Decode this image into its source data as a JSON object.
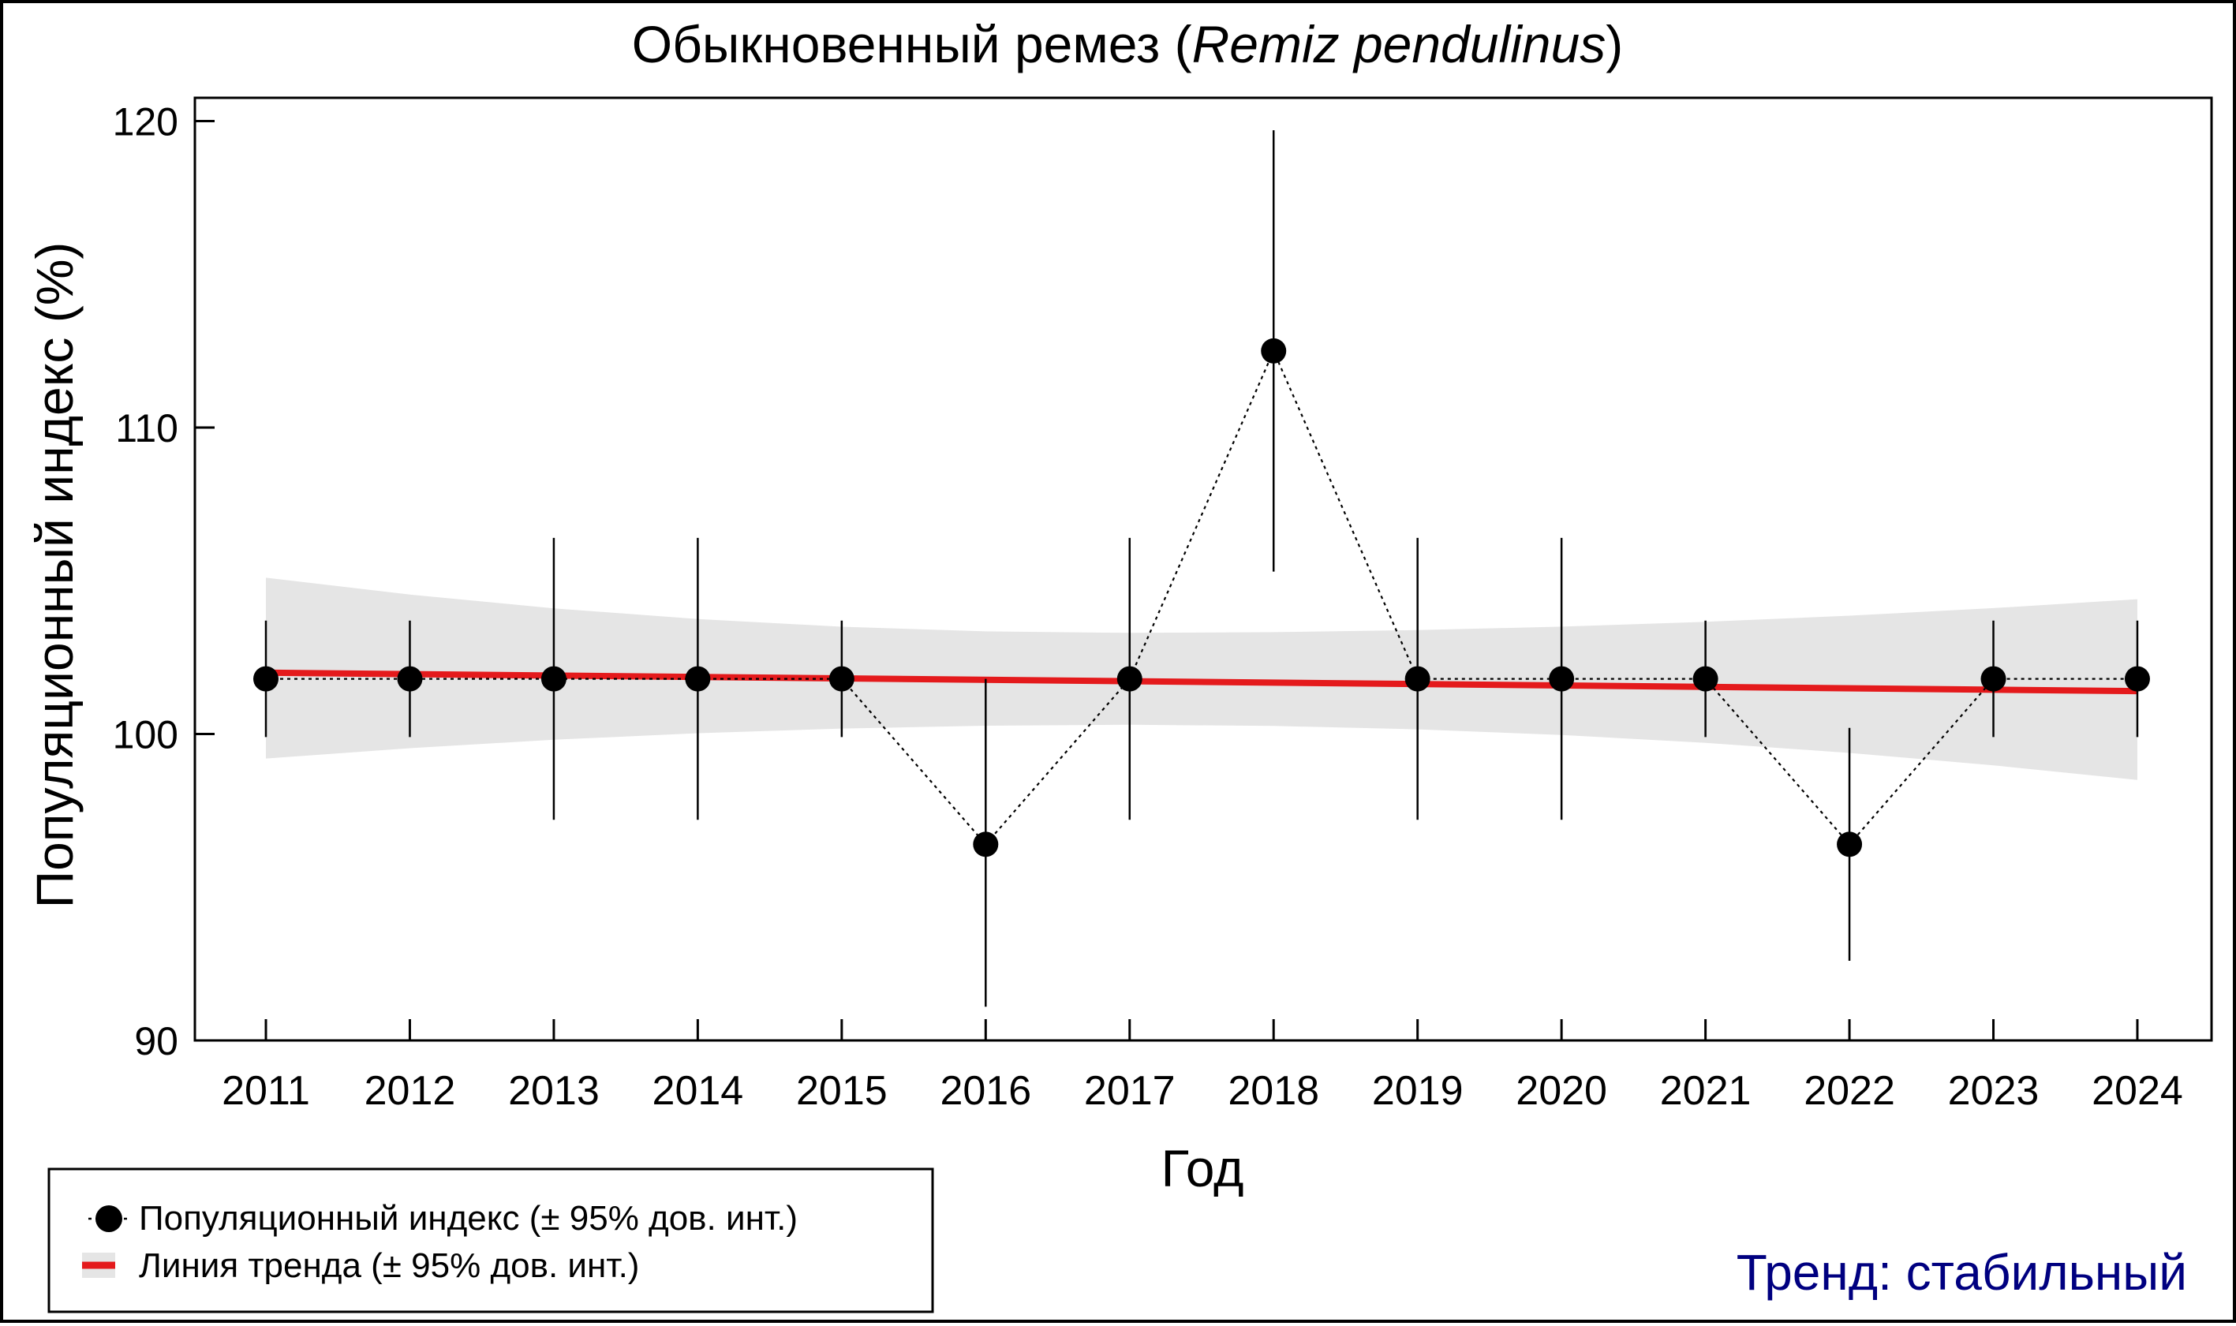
{
  "chart_data": {
    "type": "line",
    "title": {
      "prefix": "Обыкновенный ремез (",
      "italic": "Remiz pendulinus",
      "suffix": ")"
    },
    "xlabel": "Год",
    "ylabel": "Популяционный индекс (%)",
    "ylim": [
      90,
      121
    ],
    "yticks": [
      90,
      100,
      110,
      120
    ],
    "x": [
      2011,
      2012,
      2013,
      2014,
      2015,
      2016,
      2017,
      2018,
      2019,
      2020,
      2021,
      2022,
      2023,
      2024
    ],
    "series": [
      {
        "name": "Популяционный индекс (± 95% дов. инт.)",
        "values": [
          101.8,
          101.8,
          101.8,
          101.8,
          101.8,
          96.4,
          101.8,
          112.5,
          101.8,
          101.8,
          101.8,
          96.4,
          101.8,
          101.8
        ],
        "ci_lower": [
          99.9,
          99.9,
          97.2,
          97.2,
          99.9,
          91.1,
          97.2,
          105.3,
          97.2,
          97.2,
          99.9,
          92.6,
          99.9,
          99.9
        ],
        "ci_upper": [
          103.7,
          103.7,
          106.4,
          106.4,
          103.7,
          101.8,
          106.4,
          119.7,
          106.4,
          106.4,
          103.7,
          100.2,
          103.7,
          103.7
        ]
      },
      {
        "name": "Линия тренда (± 95% дов. инт.)",
        "trend_start": 102.0,
        "trend_end": 101.4,
        "band_start": [
          99.2,
          105.1
        ],
        "band_min_width_year": 2017,
        "band_mid": [
          100.3,
          103.3
        ],
        "band_end": [
          98.5,
          104.4
        ]
      }
    ],
    "legend_position": "bottom-left",
    "grid": false,
    "annotation": "Тренд: стабильный"
  },
  "colors": {
    "trend": "#e41a1c",
    "band": "#e5e5e5",
    "points": "#000000",
    "annotation": "#000080"
  }
}
